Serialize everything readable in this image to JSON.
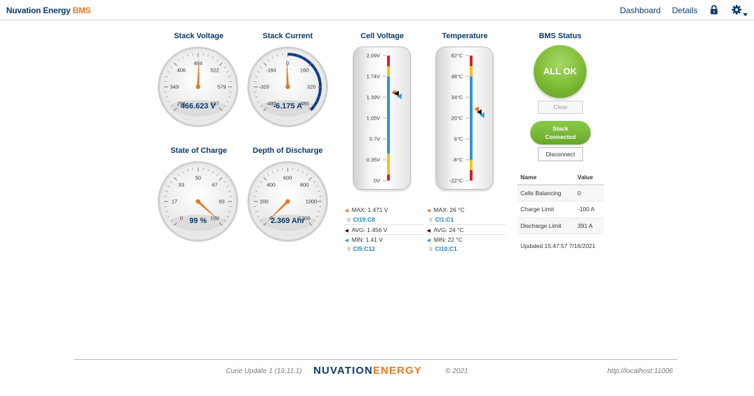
{
  "header": {
    "brand_main": "Nuvation Energy",
    "brand_sub": "BMS",
    "nav": [
      "Dashboard",
      "Details"
    ],
    "icons": [
      "lock-icon",
      "gear-icon",
      "caret-down-icon"
    ]
  },
  "gauges": [
    {
      "title": "Stack Voltage",
      "ticks": [
        "291",
        "349",
        "406",
        "464",
        "522",
        "579",
        "637"
      ],
      "min": 291,
      "max": 637,
      "value": 466.623,
      "readout": "466.623 V",
      "needle_color": "#e87722",
      "arc": null
    },
    {
      "title": "Stack Current",
      "ticks": [
        "-480",
        "-320",
        "-160",
        "0",
        "160",
        "320",
        "480"
      ],
      "min": -480,
      "max": 480,
      "value": -6.175,
      "readout": "-6.175 A",
      "needle_color": "#e87722",
      "arc": {
        "from": 0,
        "to": 480,
        "color": "#0b3a8c"
      }
    },
    {
      "title": "State of Charge",
      "ticks": [
        "0",
        "17",
        "33",
        "50",
        "67",
        "83",
        "100"
      ],
      "min": 0,
      "max": 100,
      "value": 99,
      "readout": "99 %",
      "needle_color": "#e87722",
      "arc": null
    },
    {
      "title": "Depth of Discharge",
      "ticks": [
        "0",
        "200",
        "400",
        "600",
        "800",
        "1000",
        "1200"
      ],
      "min": 0,
      "max": 1200,
      "value": 2.369,
      "readout": "2.369 Ahr",
      "needle_color": "#e87722",
      "arc": null
    }
  ],
  "thermometers": [
    {
      "title": "Cell Voltage",
      "labels": [
        "2.09V",
        "1.74V",
        "1.39V",
        "1.05V",
        "0.7V",
        "0.35V",
        "0V"
      ],
      "min": 0,
      "max": 2.09,
      "bands": [
        {
          "from": 1.91,
          "to": 2.09,
          "color": "#d62027"
        },
        {
          "from": 1.74,
          "to": 1.91,
          "color": "#f5c01a"
        },
        {
          "from": 0.45,
          "to": 1.74,
          "color": "#2b95d8"
        },
        {
          "from": 0.1,
          "to": 0.45,
          "color": "#f5c01a"
        },
        {
          "from": 0,
          "to": 0.1,
          "color": "#d62027"
        }
      ],
      "markers": [
        {
          "name": "max",
          "value": 1.471,
          "color": "#e87722"
        },
        {
          "name": "avg",
          "value": 1.456,
          "color": "#111111"
        },
        {
          "name": "min",
          "value": 1.41,
          "color": "#29a3c4"
        }
      ],
      "stats": {
        "max_label": "MAX: 1.471 V",
        "max_cell": "Cl19:C8",
        "avg_label": "AVG: 1.456 V",
        "min_label": "MIN: 1.41 V",
        "min_cell": "Cl5:C12"
      }
    },
    {
      "title": "Temperature",
      "labels": [
        "62°C",
        "48°C",
        "34°C",
        "20°C",
        "6°C",
        "-8°C",
        "-22°C"
      ],
      "min": -22,
      "max": 62,
      "bands": [
        {
          "from": 55,
          "to": 62,
          "color": "#d62027"
        },
        {
          "from": 48,
          "to": 55,
          "color": "#f5c01a"
        },
        {
          "from": -8,
          "to": 48,
          "color": "#2b95d8"
        },
        {
          "from": -15,
          "to": -8,
          "color": "#f5c01a"
        },
        {
          "from": -22,
          "to": -15,
          "color": "#d62027"
        }
      ],
      "markers": [
        {
          "name": "max",
          "value": 26,
          "color": "#e87722"
        },
        {
          "name": "avg",
          "value": 24,
          "color": "#111111"
        },
        {
          "name": "min",
          "value": 22,
          "color": "#29a3c4"
        }
      ],
      "stats": {
        "max_label": "MAX: 26 °C",
        "max_cell": "Cl1:C1",
        "avg_label": "AVG: 24 °C",
        "min_label": "MIN: 22 °C",
        "min_cell": "Cl10:C1"
      }
    }
  ],
  "bms": {
    "title": "BMS Status",
    "status": "ALL OK",
    "clear_label": "Clear",
    "stack_label_1": "Stack",
    "stack_label_2": "Connected",
    "disconnect_label": "Disconnect",
    "table": {
      "headers": [
        "Name",
        "Value"
      ],
      "rows": [
        [
          "Cells Balancing",
          "0"
        ],
        [
          "Charge Limit",
          "-100 A"
        ],
        [
          "Discharge Limit",
          "391 A"
        ]
      ]
    },
    "updated": "Updated 15:47:57 7/16/2021"
  },
  "footer": {
    "version": "Curie Update 1 (19.11.1)",
    "logo_main": "NUVATION",
    "logo_sub": "ENERGY",
    "copyright": "© 2021",
    "url": "http://localhost:11006"
  },
  "colors": {
    "navy": "#0b3a6b",
    "orange": "#e87722",
    "green": "#7dbb33",
    "link": "#1a7fc4"
  }
}
